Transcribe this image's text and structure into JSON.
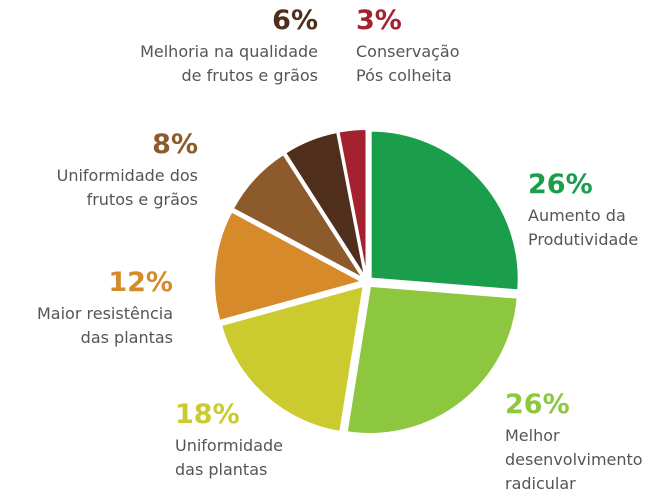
{
  "chart_data": {
    "type": "pie",
    "categories": [
      "Aumento da\nProdutividade",
      "Melhor\ndesenvolvimento\nradicular",
      "Uniformidade\ndas plantas",
      "Maior resistência\ndas plantas",
      "Uniformidade dos\nfrutos e grãos",
      "Melhoria na qualidade\nde frutos e grãos",
      "Conservação\nPós colheita"
    ],
    "values": [
      26,
      26,
      18,
      12,
      8,
      6,
      3
    ],
    "value_labels": [
      "26%",
      "26%",
      "18%",
      "12%",
      "8%",
      "6%",
      "3%"
    ],
    "colors": [
      "#1a9e4b",
      "#8dc63f",
      "#cbcb2f",
      "#d68a2a",
      "#8d5a2c",
      "#4f2f1b",
      "#a4222e"
    ]
  }
}
